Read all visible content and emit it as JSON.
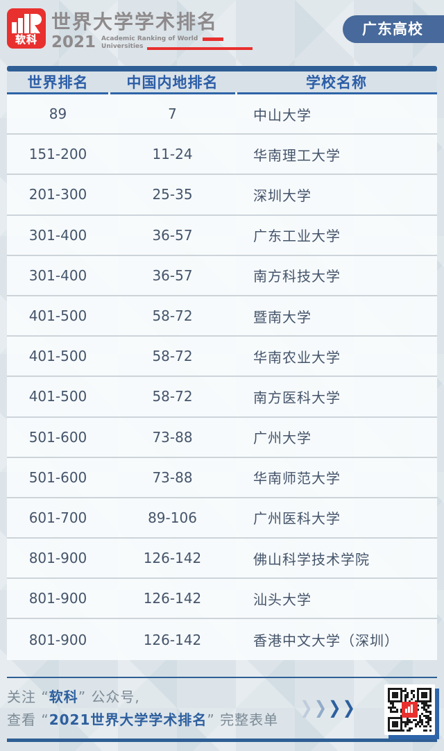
{
  "header": {
    "logo_text": "软科",
    "title": "世界大学学术排名",
    "year": "2021",
    "subtitle_line1": "Academic Ranking of World",
    "subtitle_line2": "Universities",
    "badge_label": "广东高校"
  },
  "table": {
    "columns": [
      {
        "key": "world",
        "label": "世界排名"
      },
      {
        "key": "china",
        "label": "中国内地排名"
      },
      {
        "key": "school",
        "label": "学校名称"
      }
    ],
    "rows": [
      {
        "world": "89",
        "china": "7",
        "school": "中山大学"
      },
      {
        "world": "151-200",
        "china": "11-24",
        "school": "华南理工大学"
      },
      {
        "world": "201-300",
        "china": "25-35",
        "school": "深圳大学"
      },
      {
        "world": "301-400",
        "china": "36-57",
        "school": "广东工业大学"
      },
      {
        "world": "301-400",
        "china": "36-57",
        "school": "南方科技大学"
      },
      {
        "world": "401-500",
        "china": "58-72",
        "school": "暨南大学"
      },
      {
        "world": "401-500",
        "china": "58-72",
        "school": "华南农业大学"
      },
      {
        "world": "401-500",
        "china": "58-72",
        "school": "南方医科大学"
      },
      {
        "world": "501-600",
        "china": "73-88",
        "school": "广州大学"
      },
      {
        "world": "501-600",
        "china": "73-88",
        "school": "华南师范大学"
      },
      {
        "world": "601-700",
        "china": "89-106",
        "school": "广州医科大学"
      },
      {
        "world": "801-900",
        "china": "126-142",
        "school": "佛山科学技术学院"
      },
      {
        "world": "801-900",
        "china": "126-142",
        "school": "汕头大学"
      },
      {
        "world": "801-900",
        "china": "126-142",
        "school": "香港中文大学（深圳）"
      }
    ]
  },
  "footer": {
    "line1": {
      "prefix": "关注 “",
      "highlight": "软科",
      "suffix": "” 公众号,"
    },
    "line2": {
      "prefix": "查看 “",
      "highlight": "2021世界大学学术排名",
      "suffix": "” 完整表单"
    },
    "chevron_glyph": "❯"
  },
  "colors": {
    "accent_blue": "#2e5e94",
    "header_text_blue": "#2b5da6",
    "badge_blue": "#47699b",
    "footer_blue": "#2d5f9e",
    "brand_red": "#e8302e",
    "title_gray": "#8e8a8b",
    "footer_gray": "#7c8a95",
    "row_text": "#44546a"
  }
}
